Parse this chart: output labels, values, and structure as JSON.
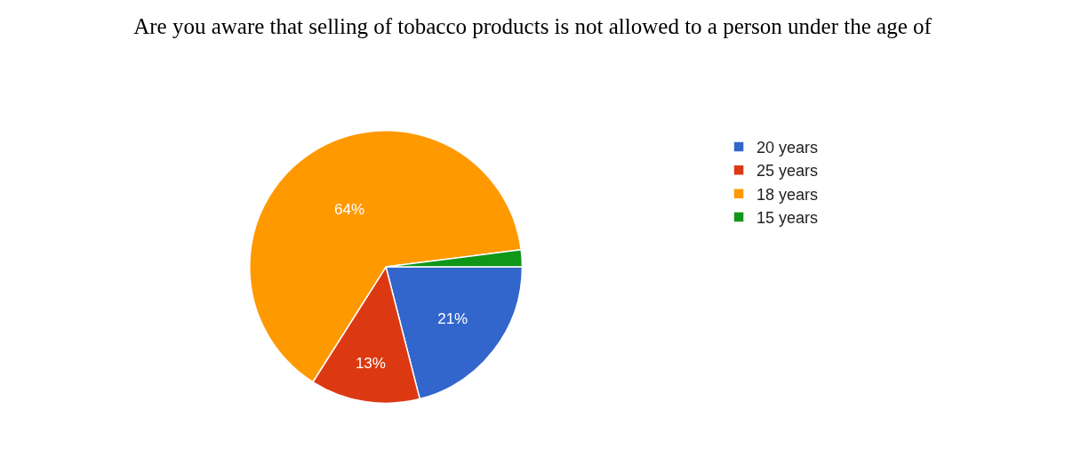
{
  "chart_data": {
    "type": "pie",
    "title": "Are you aware that selling of tobacco products is not allowed to a person under the age of",
    "categories": [
      "20 years",
      "25 years",
      "18 years",
      "15 years"
    ],
    "values": [
      21,
      13,
      64,
      2
    ],
    "value_labels": [
      "21%",
      "13%",
      "64%",
      null
    ],
    "colors": [
      "#3366cc",
      "#dc3912",
      "#ff9900",
      "#109618"
    ],
    "legend": "top right"
  }
}
